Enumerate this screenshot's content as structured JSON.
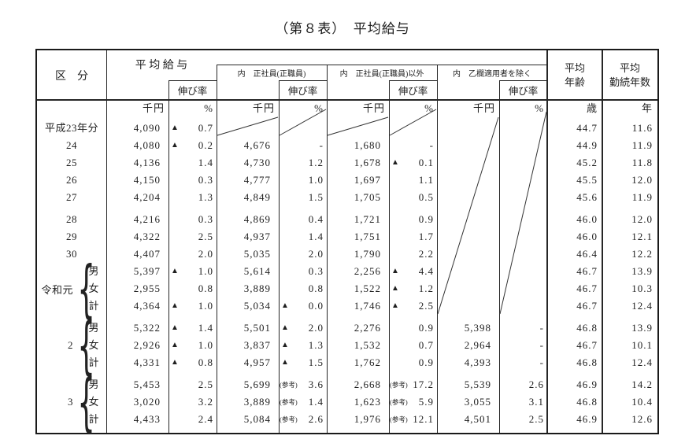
{
  "title": "（第８表）　平均給与",
  "table": {
    "header": {
      "kubun": "区　分",
      "avg_salary": "平 均 給 与",
      "growth_rate": "伸び率",
      "regular": "内　正社員(正職員)",
      "non_regular": "内　正社員(正職員)以外",
      "excl_otsu": "内　乙欄適用者を除く",
      "avg_age_l1": "平均",
      "avg_age_l2": "年齢",
      "avg_service_l1": "平均",
      "avg_service_l2": "勤続年数"
    },
    "units": [
      "千円",
      "%",
      "千円",
      "%",
      "千円",
      "%",
      "千円",
      "%",
      "歳",
      "年"
    ],
    "groups": [
      {
        "name": "令和元",
        "brace": "{"
      },
      {
        "name": "2",
        "brace": "{"
      },
      {
        "name": "3",
        "brace": "{"
      }
    ],
    "rows": [
      {
        "label": "平成23年分",
        "cells": [
          {
            "v": "4,090"
          },
          {
            "p": "▲",
            "v": "0.7"
          },
          {},
          {},
          {},
          {},
          {},
          {},
          {
            "v": "44.7"
          },
          {
            "v": "11.6"
          }
        ]
      },
      {
        "label": "24",
        "cells": [
          {
            "v": "4,080"
          },
          {
            "p": "▲",
            "v": "0.2"
          },
          {
            "v": "4,676"
          },
          {
            "v": "-"
          },
          {
            "v": "1,680"
          },
          {
            "v": "-"
          },
          {},
          {},
          {
            "v": "44.9"
          },
          {
            "v": "11.9"
          }
        ]
      },
      {
        "label": "25",
        "cells": [
          {
            "v": "4,136"
          },
          {
            "v": "1.4"
          },
          {
            "v": "4,730"
          },
          {
            "v": "1.2"
          },
          {
            "v": "1,678"
          },
          {
            "p": "▲",
            "v": "0.1"
          },
          {},
          {},
          {
            "v": "45.2"
          },
          {
            "v": "11.8"
          }
        ]
      },
      {
        "label": "26",
        "cells": [
          {
            "v": "4,150"
          },
          {
            "v": "0.3"
          },
          {
            "v": "4,777"
          },
          {
            "v": "1.0"
          },
          {
            "v": "1,697"
          },
          {
            "v": "1.1"
          },
          {},
          {},
          {
            "v": "45.5"
          },
          {
            "v": "12.0"
          }
        ]
      },
      {
        "label": "27",
        "cells": [
          {
            "v": "4,204"
          },
          {
            "v": "1.3"
          },
          {
            "v": "4,849"
          },
          {
            "v": "1.5"
          },
          {
            "v": "1,705"
          },
          {
            "v": "0.5"
          },
          {},
          {},
          {
            "v": "45.6"
          },
          {
            "v": "11.9"
          }
        ]
      },
      {
        "label": "28",
        "gap": true,
        "cells": [
          {
            "v": "4,216"
          },
          {
            "v": "0.3"
          },
          {
            "v": "4,869"
          },
          {
            "v": "0.4"
          },
          {
            "v": "1,721"
          },
          {
            "v": "0.9"
          },
          {},
          {},
          {
            "v": "46.0"
          },
          {
            "v": "12.0"
          }
        ]
      },
      {
        "label": "29",
        "cells": [
          {
            "v": "4,322"
          },
          {
            "v": "2.5"
          },
          {
            "v": "4,937"
          },
          {
            "v": "1.4"
          },
          {
            "v": "1,751"
          },
          {
            "v": "1.7"
          },
          {},
          {},
          {
            "v": "46.0"
          },
          {
            "v": "12.1"
          }
        ]
      },
      {
        "label": "30",
        "cells": [
          {
            "v": "4,407"
          },
          {
            "v": "2.0"
          },
          {
            "v": "5,035"
          },
          {
            "v": "2.0"
          },
          {
            "v": "1,790"
          },
          {
            "v": "2.2"
          },
          {},
          {},
          {
            "v": "46.4"
          },
          {
            "v": "12.2"
          }
        ]
      },
      {
        "label": "男",
        "sub": true,
        "cells": [
          {
            "v": "5,397"
          },
          {
            "p": "▲",
            "v": "1.0"
          },
          {
            "v": "5,614"
          },
          {
            "v": "0.3"
          },
          {
            "v": "2,256"
          },
          {
            "p": "▲",
            "v": "4.4"
          },
          {},
          {},
          {
            "v": "46.7"
          },
          {
            "v": "13.9"
          }
        ]
      },
      {
        "label": "女",
        "sub": true,
        "cells": [
          {
            "v": "2,955"
          },
          {
            "v": "0.8"
          },
          {
            "v": "3,889"
          },
          {
            "v": "0.8"
          },
          {
            "v": "1,522"
          },
          {
            "p": "▲",
            "v": "1.2"
          },
          {},
          {},
          {
            "v": "46.7"
          },
          {
            "v": "10.3"
          }
        ]
      },
      {
        "label": "計",
        "sub": true,
        "cells": [
          {
            "v": "4,364"
          },
          {
            "p": "▲",
            "v": "1.0"
          },
          {
            "v": "5,034"
          },
          {
            "p": "▲",
            "v": "0.0"
          },
          {
            "v": "1,746"
          },
          {
            "p": "▲",
            "v": "2.5"
          },
          {},
          {},
          {
            "v": "46.7"
          },
          {
            "v": "12.4"
          }
        ]
      },
      {
        "label": "男",
        "sub": true,
        "gap": true,
        "cells": [
          {
            "v": "5,322"
          },
          {
            "p": "▲",
            "v": "1.4"
          },
          {
            "v": "5,501"
          },
          {
            "p": "▲",
            "v": "2.0"
          },
          {
            "v": "2,276"
          },
          {
            "v": "0.9"
          },
          {
            "v": "5,398"
          },
          {
            "v": "-"
          },
          {
            "v": "46.8"
          },
          {
            "v": "13.9"
          }
        ]
      },
      {
        "label": "女",
        "sub": true,
        "cells": [
          {
            "v": "2,926"
          },
          {
            "p": "▲",
            "v": "1.0"
          },
          {
            "v": "3,837"
          },
          {
            "p": "▲",
            "v": "1.3"
          },
          {
            "v": "1,532"
          },
          {
            "v": "0.7"
          },
          {
            "v": "2,964"
          },
          {
            "v": "-"
          },
          {
            "v": "46.7"
          },
          {
            "v": "10.1"
          }
        ]
      },
      {
        "label": "計",
        "sub": true,
        "cells": [
          {
            "v": "4,331"
          },
          {
            "p": "▲",
            "v": "0.8"
          },
          {
            "v": "4,957"
          },
          {
            "p": "▲",
            "v": "1.5"
          },
          {
            "v": "1,762"
          },
          {
            "v": "0.9"
          },
          {
            "v": "4,393"
          },
          {
            "v": "-"
          },
          {
            "v": "46.8"
          },
          {
            "v": "12.4"
          }
        ]
      },
      {
        "label": "男",
        "sub": true,
        "gap": true,
        "cells": [
          {
            "v": "5,453"
          },
          {
            "v": "2.5"
          },
          {
            "v": "5,699"
          },
          {
            "p": "(参考)",
            "v": "3.6"
          },
          {
            "v": "2,668"
          },
          {
            "p": "(参考)",
            "v": "17.2"
          },
          {
            "v": "5,539"
          },
          {
            "v": "2.6"
          },
          {
            "v": "46.9"
          },
          {
            "v": "14.2"
          }
        ]
      },
      {
        "label": "女",
        "sub": true,
        "cells": [
          {
            "v": "3,020"
          },
          {
            "v": "3.2"
          },
          {
            "v": "3,889"
          },
          {
            "p": "(参考)",
            "v": "1.4"
          },
          {
            "v": "1,623"
          },
          {
            "p": "(参考)",
            "v": "5.9"
          },
          {
            "v": "3,055"
          },
          {
            "v": "3.1"
          },
          {
            "v": "46.8"
          },
          {
            "v": "10.4"
          }
        ]
      },
      {
        "label": "計",
        "sub": true,
        "cells": [
          {
            "v": "4,433"
          },
          {
            "v": "2.4"
          },
          {
            "v": "5,084"
          },
          {
            "p": "(参考)",
            "v": "2.6"
          },
          {
            "v": "1,976"
          },
          {
            "p": "(参考)",
            "v": "12.1"
          },
          {
            "v": "4,501"
          },
          {
            "v": "2.5"
          },
          {
            "v": "46.9"
          },
          {
            "v": "12.6"
          }
        ]
      }
    ]
  }
}
